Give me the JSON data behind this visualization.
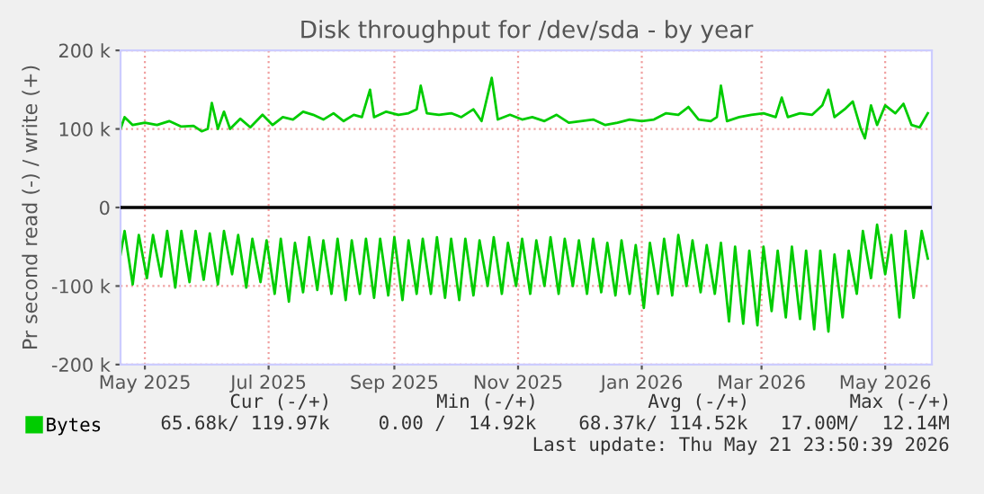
{
  "chart_data": {
    "type": "line",
    "title": "Disk throughput for /dev/sda - by year",
    "ylabel": "Pr second read (-) / write (+)",
    "xlim": [
      "2025-04-19",
      "2026-05-24"
    ],
    "ylim": [
      -200,
      200
    ],
    "xticks": [
      {
        "value": "2025-05-01",
        "label": "May 2025"
      },
      {
        "value": "2025-07-01",
        "label": "Jul 2025"
      },
      {
        "value": "2025-09-01",
        "label": "Sep 2025"
      },
      {
        "value": "2025-11-01",
        "label": "Nov 2025"
      },
      {
        "value": "2026-01-01",
        "label": "Jan 2026"
      },
      {
        "value": "2026-03-01",
        "label": "Mar 2026"
      },
      {
        "value": "2026-05-01",
        "label": "May 2026"
      }
    ],
    "yticks": [
      {
        "value": -200,
        "label": "-200 k"
      },
      {
        "value": -100,
        "label": "-100 k"
      },
      0,
      {
        "value": 100,
        "label": "100 k"
      },
      {
        "value": 200,
        "label": "200 k"
      }
    ],
    "grid": true,
    "legend": "bottom",
    "line_style": "solid",
    "marker": "none",
    "ref_lines": [
      {
        "axis": "y",
        "value": 0,
        "color": "#000000"
      }
    ],
    "series": [
      {
        "name": "Bytes",
        "color": "#00cc00",
        "x": [
          "2025-04-19",
          "2025-04-21",
          "2025-04-25",
          "2025-05-01",
          "2025-05-07",
          "2025-05-13",
          "2025-05-19",
          "2025-05-25",
          "2025-05-29",
          "2025-06-01",
          "2025-06-03",
          "2025-06-06",
          "2025-06-09",
          "2025-06-12",
          "2025-06-17",
          "2025-06-22",
          "2025-06-28",
          "2025-07-03",
          "2025-07-08",
          "2025-07-13",
          "2025-07-18",
          "2025-07-23",
          "2025-07-28",
          "2025-08-02",
          "2025-08-07",
          "2025-08-12",
          "2025-08-16",
          "2025-08-20",
          "2025-08-22",
          "2025-08-28",
          "2025-09-03",
          "2025-09-08",
          "2025-09-12",
          "2025-09-14",
          "2025-09-17",
          "2025-09-23",
          "2025-09-29",
          "2025-10-04",
          "2025-10-10",
          "2025-10-14",
          "2025-10-19",
          "2025-10-22",
          "2025-10-28",
          "2025-11-03",
          "2025-11-08",
          "2025-11-14",
          "2025-11-20",
          "2025-11-26",
          "2025-12-02",
          "2025-12-08",
          "2025-12-14",
          "2025-12-20",
          "2025-12-26",
          "2026-01-01",
          "2026-01-07",
          "2026-01-13",
          "2026-01-19",
          "2026-01-24",
          "2026-01-29",
          "2026-02-04",
          "2026-02-07",
          "2026-02-09",
          "2026-02-12",
          "2026-02-18",
          "2026-02-24",
          "2026-03-02",
          "2026-03-08",
          "2026-03-11",
          "2026-03-14",
          "2026-03-20",
          "2026-03-26",
          "2026-03-31",
          "2026-04-03",
          "2026-04-06",
          "2026-04-11",
          "2026-04-15",
          "2026-04-19",
          "2026-04-21",
          "2026-04-24",
          "2026-04-27",
          "2026-05-01",
          "2026-05-06",
          "2026-05-10",
          "2026-05-14",
          "2026-05-18",
          "2026-05-22"
        ],
        "values": [
          100,
          115,
          105,
          108,
          105,
          110,
          103,
          104,
          97,
          100,
          133,
          100,
          122,
          100,
          113,
          102,
          118,
          105,
          115,
          112,
          122,
          118,
          112,
          120,
          110,
          118,
          115,
          150,
          115,
          122,
          118,
          120,
          125,
          155,
          120,
          118,
          120,
          115,
          125,
          110,
          165,
          112,
          118,
          112,
          115,
          110,
          118,
          108,
          110,
          112,
          105,
          108,
          112,
          110,
          112,
          120,
          118,
          128,
          112,
          110,
          115,
          155,
          110,
          115,
          118,
          120,
          115,
          140,
          115,
          120,
          118,
          130,
          150,
          115,
          125,
          135,
          100,
          88,
          130,
          105,
          130,
          120,
          132,
          105,
          102,
          120
        ]
      },
      {
        "color": "#00cc00",
        "x": [
          "2025-04-19",
          "2025-04-21",
          "2025-04-25",
          "2025-04-28",
          "2025-05-02",
          "2025-05-05",
          "2025-05-09",
          "2025-05-12",
          "2025-05-16",
          "2025-05-19",
          "2025-05-23",
          "2025-05-26",
          "2025-05-30",
          "2025-06-02",
          "2025-06-06",
          "2025-06-09",
          "2025-06-13",
          "2025-06-16",
          "2025-06-20",
          "2025-06-23",
          "2025-06-27",
          "2025-06-30",
          "2025-07-04",
          "2025-07-07",
          "2025-07-11",
          "2025-07-14",
          "2025-07-18",
          "2025-07-21",
          "2025-07-25",
          "2025-07-28",
          "2025-08-01",
          "2025-08-04",
          "2025-08-08",
          "2025-08-11",
          "2025-08-15",
          "2025-08-18",
          "2025-08-22",
          "2025-08-25",
          "2025-08-29",
          "2025-09-01",
          "2025-09-05",
          "2025-09-08",
          "2025-09-12",
          "2025-09-15",
          "2025-09-19",
          "2025-09-22",
          "2025-09-26",
          "2025-09-29",
          "2025-10-03",
          "2025-10-06",
          "2025-10-10",
          "2025-10-13",
          "2025-10-17",
          "2025-10-20",
          "2025-10-24",
          "2025-10-27",
          "2025-10-31",
          "2025-11-03",
          "2025-11-07",
          "2025-11-10",
          "2025-11-14",
          "2025-11-17",
          "2025-11-21",
          "2025-11-24",
          "2025-11-28",
          "2025-12-01",
          "2025-12-05",
          "2025-12-08",
          "2025-12-12",
          "2025-12-15",
          "2025-12-19",
          "2025-12-22",
          "2025-12-26",
          "2025-12-29",
          "2026-01-02",
          "2026-01-05",
          "2026-01-09",
          "2026-01-12",
          "2026-01-16",
          "2026-01-19",
          "2026-01-23",
          "2026-01-26",
          "2026-01-30",
          "2026-02-02",
          "2026-02-06",
          "2026-02-09",
          "2026-02-13",
          "2026-02-16",
          "2026-02-20",
          "2026-02-23",
          "2026-02-27",
          "2026-03-02",
          "2026-03-06",
          "2026-03-09",
          "2026-03-13",
          "2026-03-16",
          "2026-03-20",
          "2026-03-23",
          "2026-03-27",
          "2026-03-30",
          "2026-04-03",
          "2026-04-06",
          "2026-04-10",
          "2026-04-13",
          "2026-04-17",
          "2026-04-20",
          "2026-04-24",
          "2026-04-27",
          "2026-05-01",
          "2026-05-04",
          "2026-05-08",
          "2026-05-11",
          "2026-05-15",
          "2026-05-19",
          "2026-05-22"
        ],
        "values": [
          -60,
          -30,
          -98,
          -35,
          -90,
          -35,
          -88,
          -30,
          -102,
          -30,
          -95,
          -30,
          -92,
          -33,
          -98,
          -30,
          -85,
          -35,
          -102,
          -40,
          -95,
          -42,
          -110,
          -40,
          -120,
          -45,
          -108,
          -38,
          -105,
          -42,
          -110,
          -40,
          -118,
          -42,
          -110,
          -40,
          -115,
          -40,
          -112,
          -38,
          -118,
          -42,
          -110,
          -40,
          -110,
          -38,
          -115,
          -40,
          -118,
          -40,
          -112,
          -42,
          -100,
          -38,
          -110,
          -45,
          -100,
          -40,
          -110,
          -42,
          -100,
          -38,
          -110,
          -40,
          -100,
          -42,
          -110,
          -40,
          -108,
          -45,
          -112,
          -42,
          -110,
          -48,
          -128,
          -45,
          -110,
          -40,
          -112,
          -35,
          -100,
          -42,
          -108,
          -48,
          -110,
          -45,
          -145,
          -50,
          -148,
          -55,
          -150,
          -50,
          -132,
          -55,
          -140,
          -50,
          -142,
          -55,
          -155,
          -55,
          -158,
          -60,
          -140,
          -55,
          -110,
          -30,
          -90,
          -22,
          -85,
          -35,
          -140,
          -30,
          -115,
          -30,
          -65
        ]
      }
    ],
    "annotations": [
      "Cur (-/+)",
      "Min (-/+)",
      "Avg (-/+)",
      "Max (-/+)",
      "65.68k/ 119.97k",
      "0.00 /  14.92k",
      "68.37k/ 114.52k",
      "17.00M/  12.14M",
      "Last update: Thu May 21 23:50:39 2026"
    ]
  }
}
